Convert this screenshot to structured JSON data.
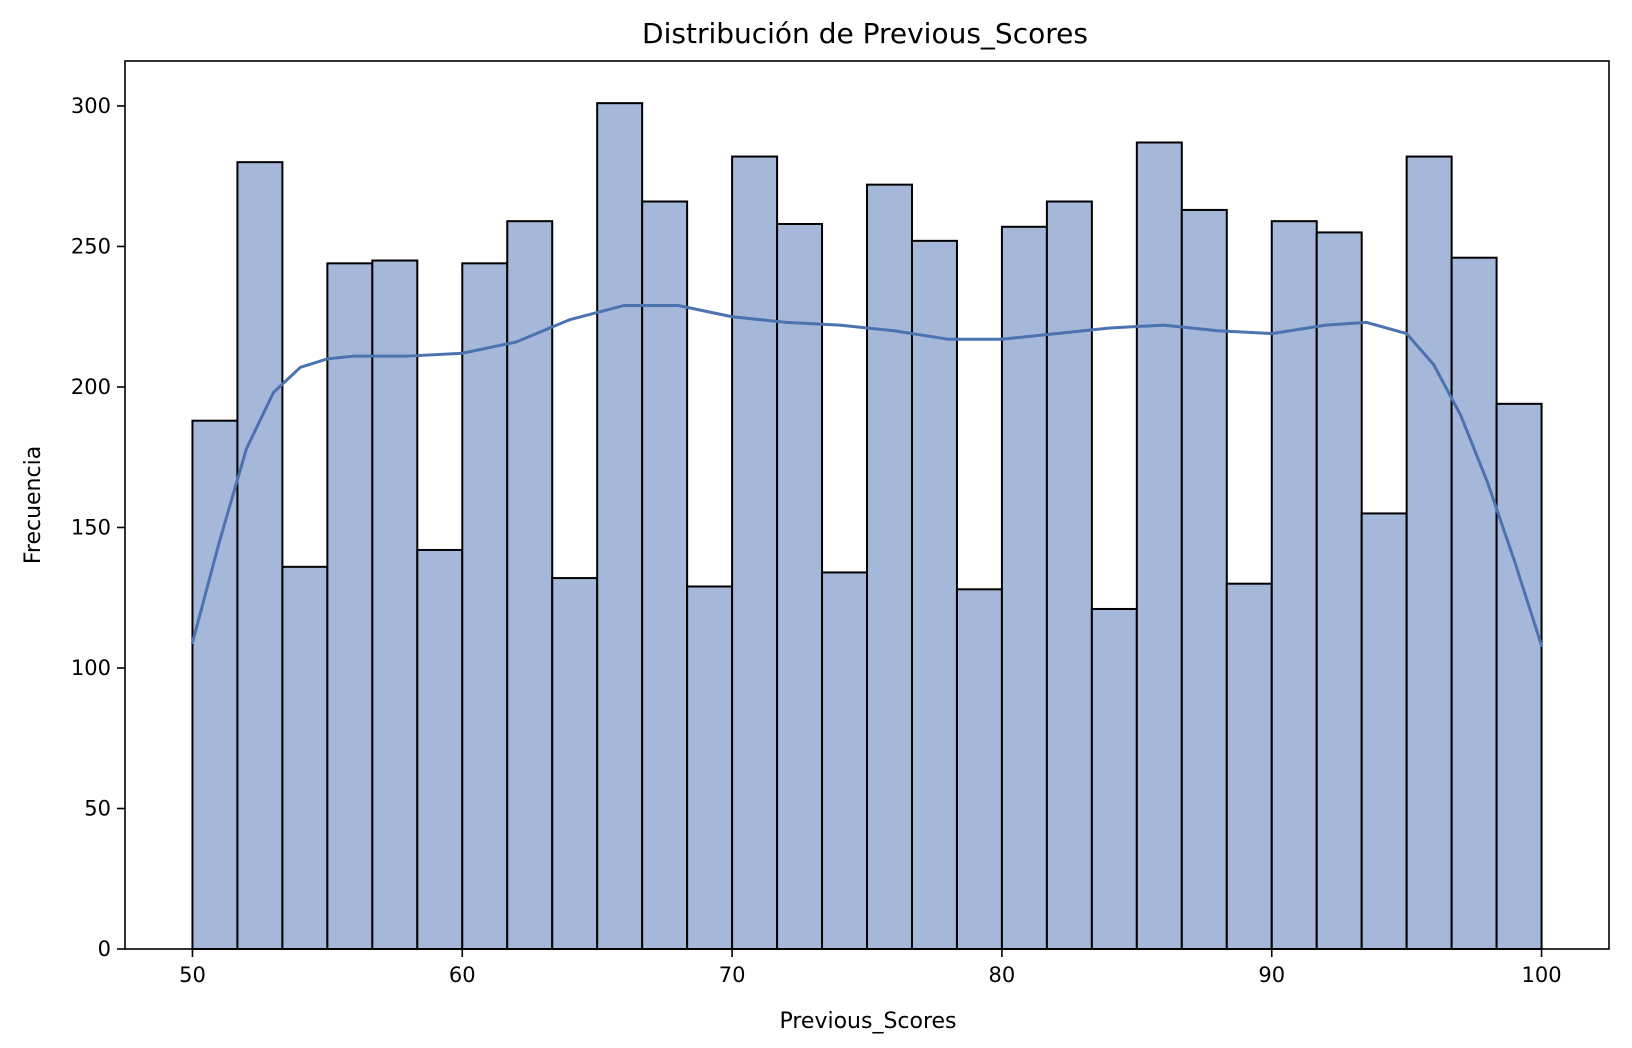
{
  "chart_data": {
    "type": "bar",
    "title": "Distribución de Previous_Scores",
    "xlabel": "Previous_Scores",
    "ylabel": "Frecuencia",
    "xlim": [
      47.5,
      102.5
    ],
    "ylim": [
      0,
      316
    ],
    "bin_start": 50,
    "bin_width": 1.6667,
    "values": [
      188,
      280,
      136,
      244,
      245,
      142,
      244,
      259,
      132,
      301,
      266,
      129,
      282,
      258,
      134,
      272,
      252,
      128,
      257,
      266,
      121,
      287,
      263,
      130,
      259,
      255,
      155,
      282,
      246,
      194
    ],
    "xticks": [
      50,
      60,
      70,
      80,
      90,
      100
    ],
    "yticks": [
      0,
      50,
      100,
      150,
      200,
      250,
      300
    ],
    "kde": {
      "x": [
        50,
        51,
        52,
        53,
        54,
        55,
        56,
        58,
        60,
        62,
        64,
        66,
        68,
        70,
        72,
        74,
        76,
        78,
        80,
        82,
        84,
        86,
        88,
        90,
        92,
        93.5,
        95,
        96,
        97,
        98,
        99,
        100
      ],
      "y": [
        109,
        145,
        178,
        198,
        207,
        210,
        211,
        211,
        212,
        216,
        224,
        229,
        229,
        225,
        223,
        222,
        220,
        217,
        217,
        219,
        221,
        222,
        220,
        219,
        222,
        223,
        219,
        208,
        190,
        166,
        138,
        108
      ]
    },
    "colors": {
      "bar_fill": "#a5b8d9",
      "bar_edge": "#000000",
      "kde_line": "#4c72b0"
    },
    "grid": false,
    "legend": "none"
  }
}
